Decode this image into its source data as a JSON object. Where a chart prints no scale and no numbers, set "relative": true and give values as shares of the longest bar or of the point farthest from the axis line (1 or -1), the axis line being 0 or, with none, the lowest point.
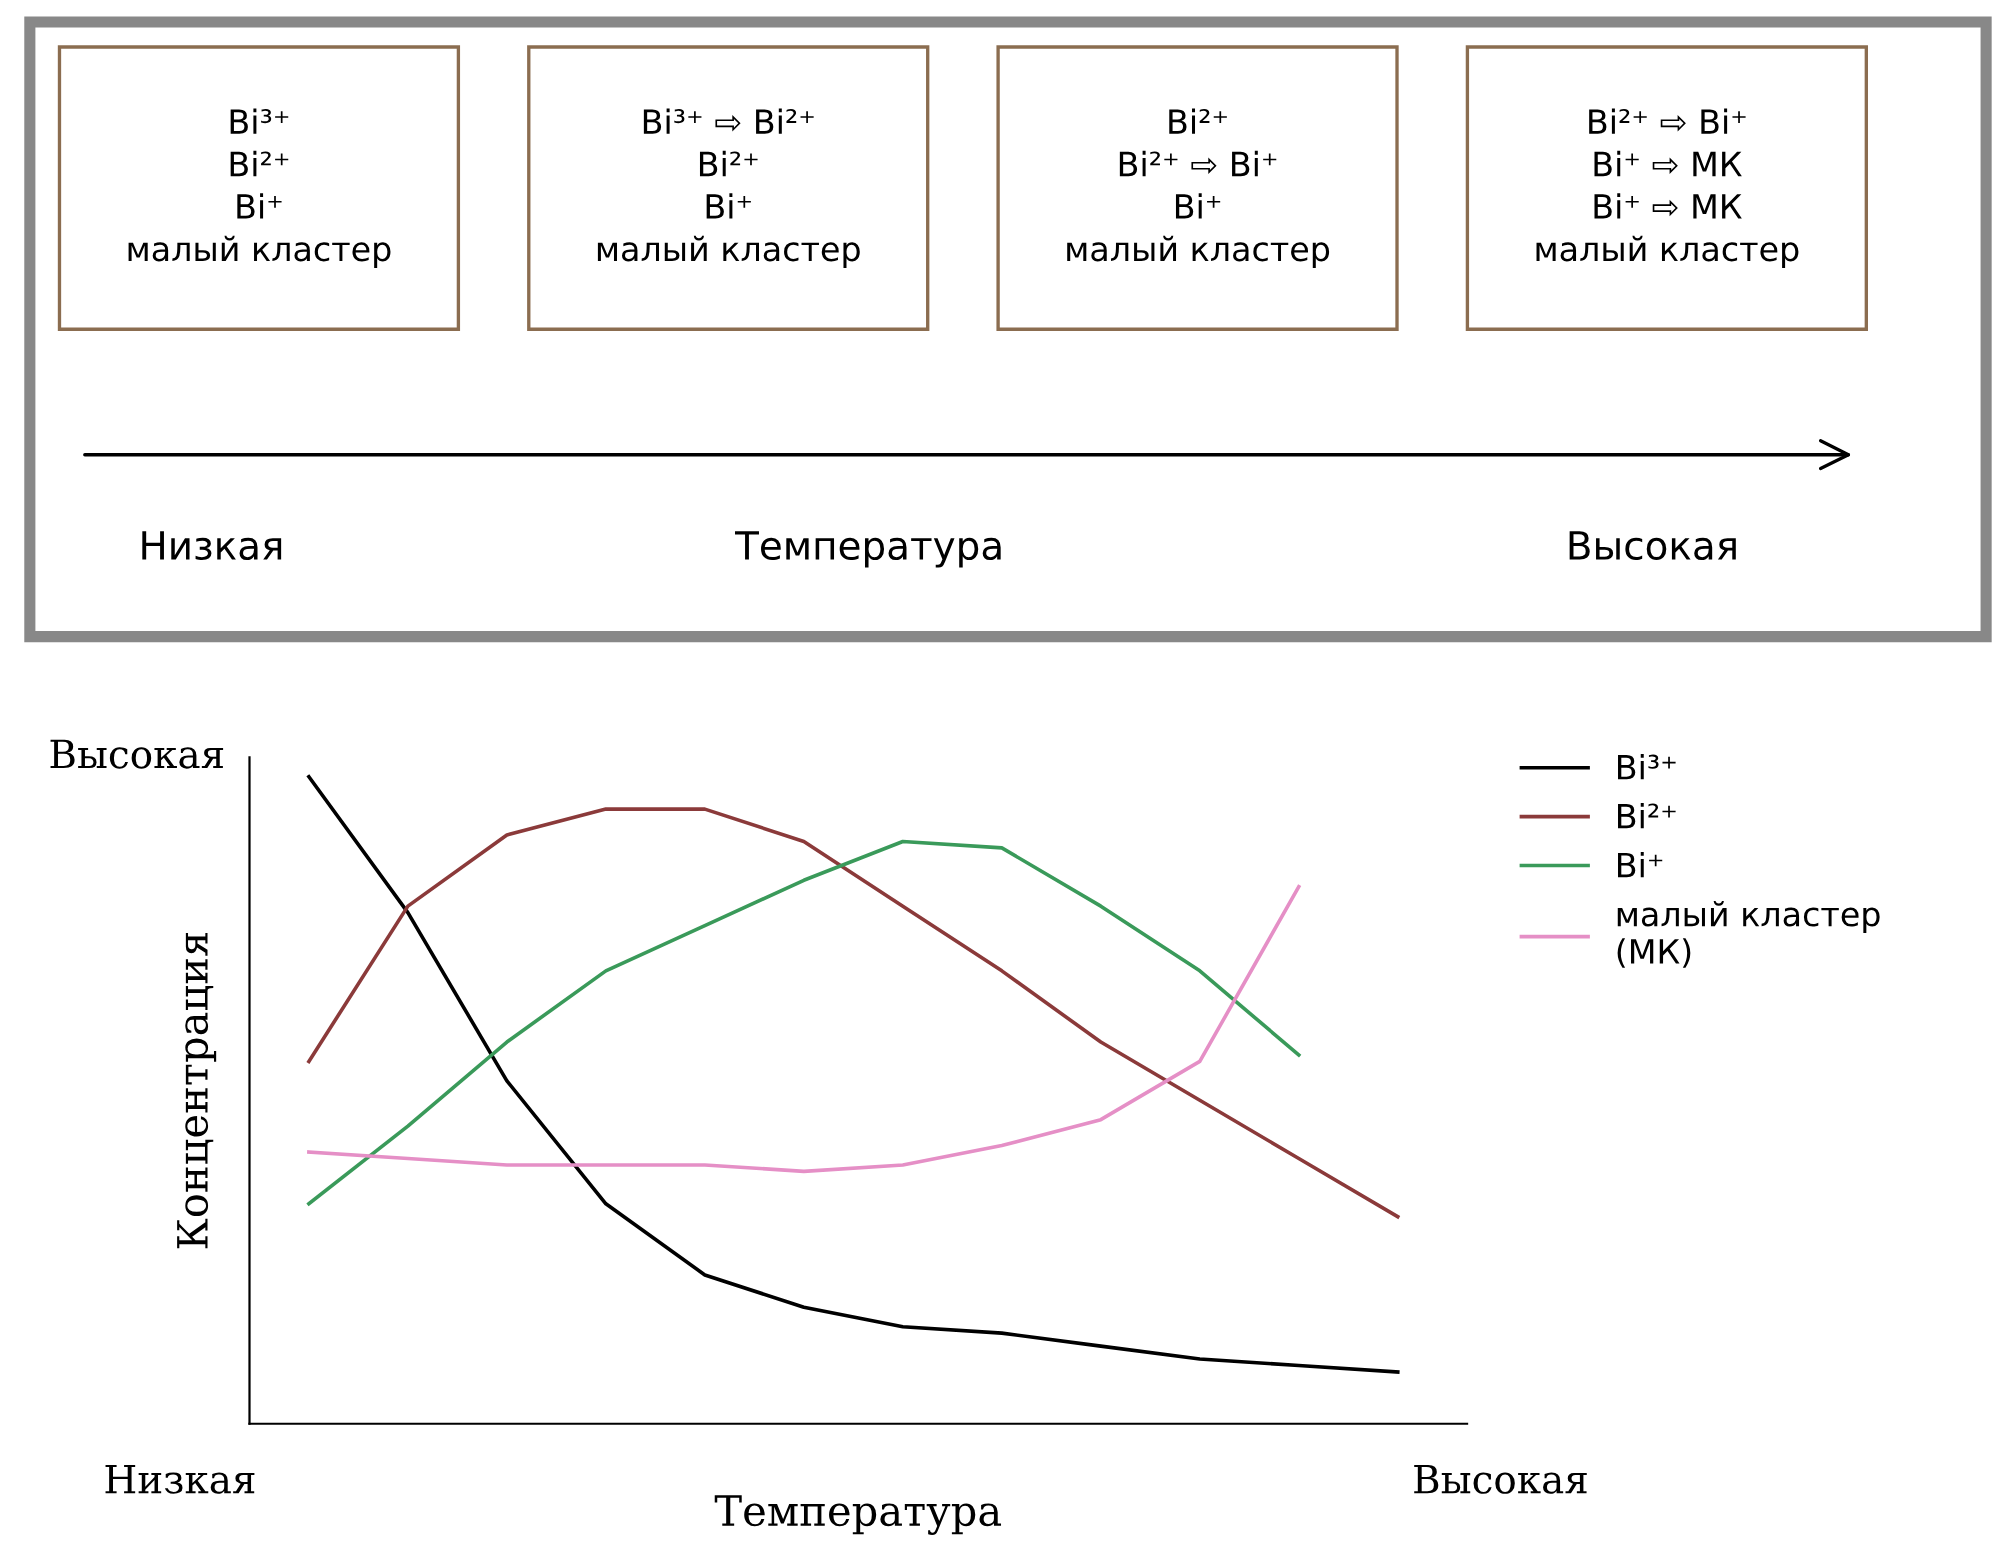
{
  "chart_data": [
    {
      "type": "other",
      "xlabel": "Температура",
      "annotations": [
        "Bi³⁺\nBi²⁺\nBi⁺\nмалый кластер",
        "Bi³⁺ ⇨ Bi²⁺\nBi²⁺\nBi⁺\nмалый кластер",
        "Bi²⁺\nBi²⁺ ⇨ Bi⁺\nBi⁺\nмалый кластер",
        "Bi²⁺ ⇨ Bi⁺\nBi⁺ ⇨ МК\nBi⁺ ⇨ МК\nмалый кластер",
        "Низкая",
        "Высокая"
      ]
    },
    {
      "type": "line",
      "relative": true,
      "xlabel": "Температура",
      "ylabel": "Концентрация",
      "annotations": [
        "Высокая",
        "Низкая",
        "Высокая"
      ],
      "legend": "top right",
      "grid": false,
      "marker": "none",
      "line_style": "solid",
      "categories": [
        null,
        null,
        null,
        null,
        null,
        null,
        null,
        null,
        null,
        null,
        null,
        null
      ],
      "series": [
        {
          "name": "Bi³⁺",
          "color": "#000000",
          "values": [
            1.0,
            0.79,
            0.53,
            0.34,
            0.23,
            0.18,
            0.15,
            0.14,
            0.12,
            0.1,
            0.09,
            0.08
          ]
        },
        {
          "name": "Bi²⁺",
          "color": "#8b3a3a",
          "values": [
            0.56,
            0.8,
            0.91,
            0.95,
            0.95,
            0.9,
            0.8,
            0.7,
            0.59,
            0.5,
            0.41,
            0.32
          ]
        },
        {
          "name": "Bi⁺",
          "color": "#3a9a5a",
          "values": [
            0.34,
            0.46,
            0.59,
            0.7,
            0.77,
            0.84,
            0.9,
            0.89,
            0.8,
            0.7,
            0.57,
            null
          ]
        },
        {
          "name": "малый кластер\n(МК)",
          "color": "#e58fc6",
          "values": [
            0.42,
            0.41,
            0.4,
            0.4,
            0.4,
            0.39,
            0.4,
            0.43,
            0.47,
            0.56,
            0.83,
            null
          ]
        }
      ]
    }
  ]
}
